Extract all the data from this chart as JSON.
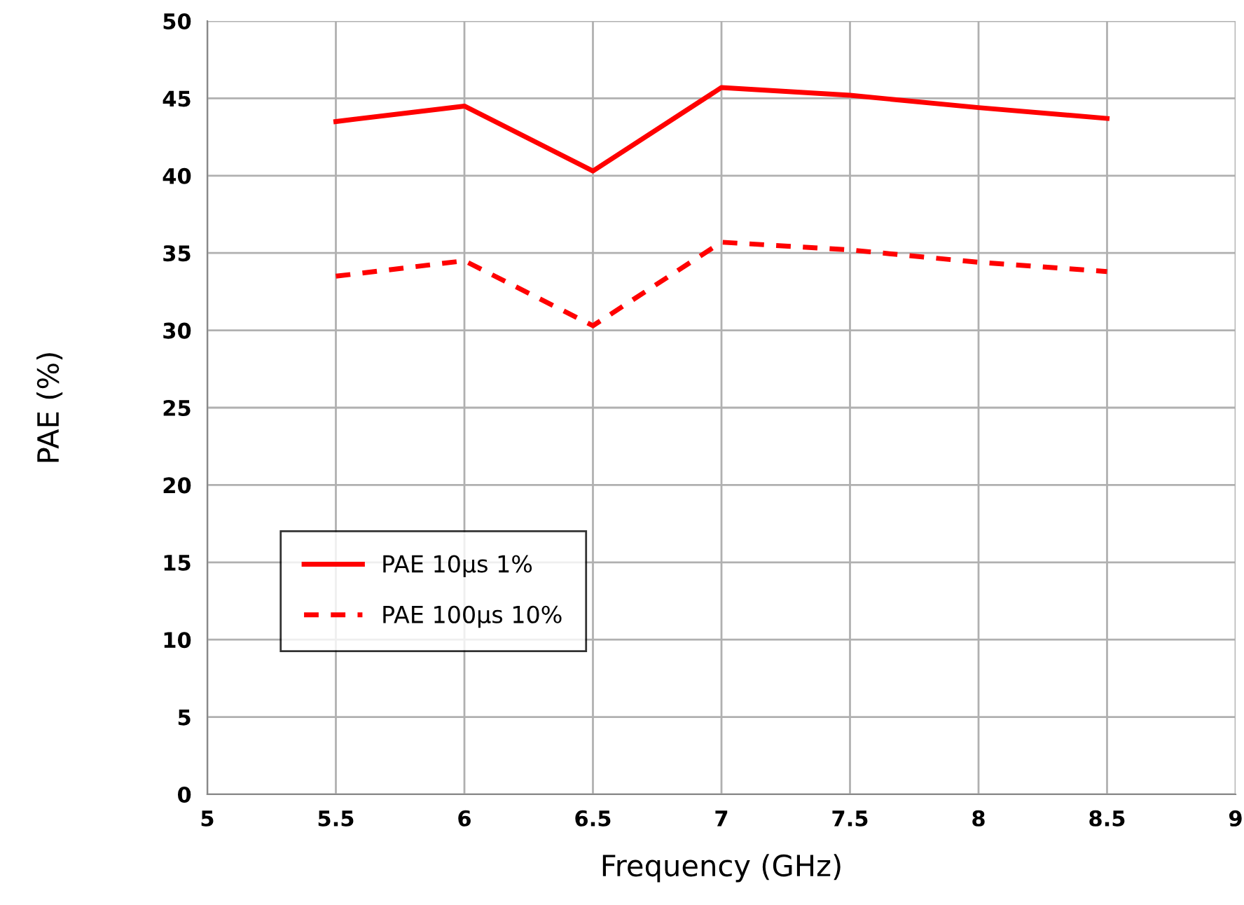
{
  "chart_data": {
    "type": "line",
    "xlabel": "Frequency (GHz)",
    "ylabel": "PAE (%)",
    "x": [
      5.5,
      6,
      6.5,
      7,
      7.5,
      8,
      8.5
    ],
    "series": [
      {
        "name": "PAE 10µs 1%",
        "color": "#ff0000",
        "line_style": "solid",
        "values": [
          43.5,
          44.5,
          40.3,
          45.7,
          45.2,
          44.4,
          43.7
        ]
      },
      {
        "name": "PAE 100µs 10%",
        "color": "#ff0000",
        "line_style": "dashed",
        "values": [
          33.5,
          34.5,
          30.3,
          35.7,
          35.2,
          34.4,
          33.8
        ]
      }
    ],
    "xlim": [
      5,
      9
    ],
    "xticks": [
      5,
      5.5,
      6,
      6.5,
      7,
      7.5,
      8,
      8.5,
      9
    ],
    "ylim": [
      0,
      50
    ],
    "yticks": [
      0,
      5,
      10,
      15,
      20,
      25,
      30,
      35,
      40,
      45,
      50
    ],
    "grid": true,
    "legend": "bottom left",
    "marker": "none"
  }
}
